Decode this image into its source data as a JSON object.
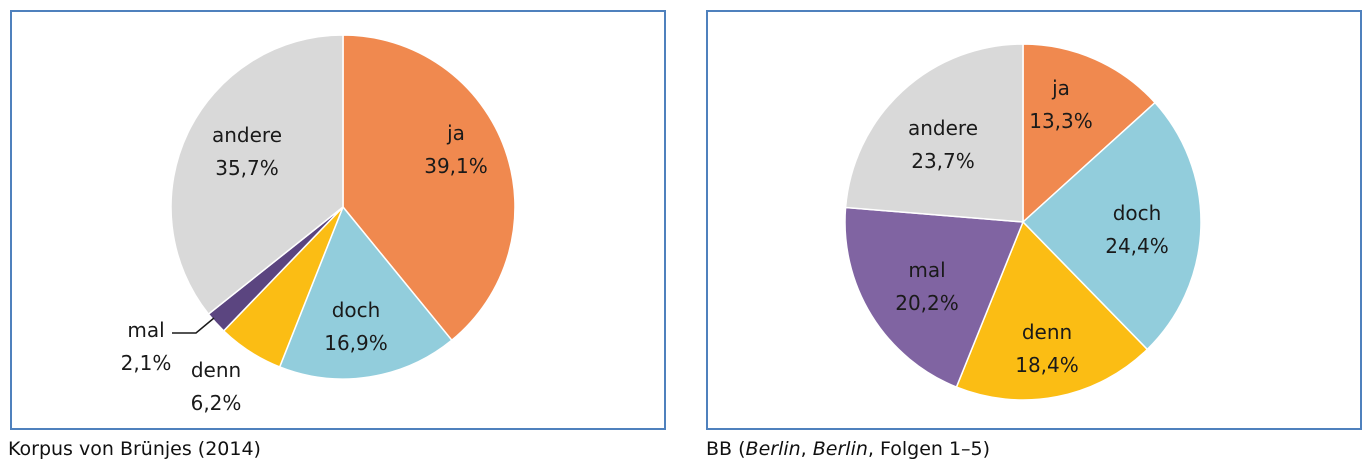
{
  "chart_data": [
    {
      "type": "pie",
      "caption": "Korpus von Brünjes (2014)",
      "categories": [
        "ja",
        "doch",
        "denn",
        "mal",
        "andere"
      ],
      "values": [
        39.1,
        16.9,
        6.2,
        2.1,
        35.7
      ],
      "value_labels": [
        "39,1%",
        "16,9%",
        "6,2%",
        "2,1%",
        "35,7%"
      ],
      "colors": [
        "#f0894f",
        "#92cddc",
        "#fbbd14",
        "#5b4580",
        "#d9d9d9"
      ],
      "start": "12 o'clock",
      "direction": "clockwise",
      "legend": "none"
    },
    {
      "type": "pie",
      "caption_parts": [
        {
          "text": "BB (",
          "italic": false
        },
        {
          "text": "Berlin",
          "italic": true
        },
        {
          "text": ", ",
          "italic": false
        },
        {
          "text": "Berlin",
          "italic": true
        },
        {
          "text": ", Folgen 1–5)",
          "italic": false
        }
      ],
      "categories": [
        "ja",
        "doch",
        "denn",
        "mal",
        "andere"
      ],
      "values": [
        13.3,
        24.4,
        18.4,
        20.2,
        23.7
      ],
      "value_labels": [
        "13,3%",
        "24,4%",
        "18,4%",
        "20,2%",
        "23,7%"
      ],
      "colors": [
        "#f0894f",
        "#92cddc",
        "#fbbd14",
        "#8064a2",
        "#d9d9d9"
      ],
      "start": "12 o'clock",
      "direction": "clockwise",
      "legend": "none"
    }
  ]
}
